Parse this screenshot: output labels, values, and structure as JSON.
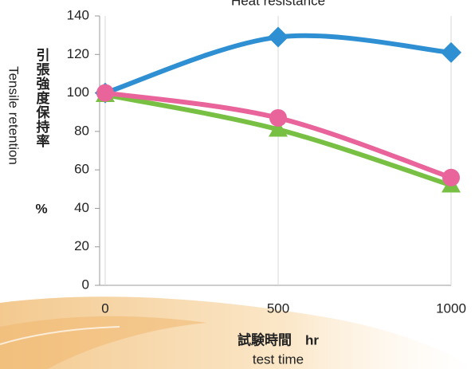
{
  "chart_data": {
    "type": "line",
    "title": "Heat resistance",
    "y_label_ja": "引張強度保持率",
    "y_label_unit": "%",
    "y_label": "Tensile retention",
    "x_label_ja": "試験時間　hr",
    "x_label": "test time",
    "x": [
      0,
      500,
      1000
    ],
    "series": [
      {
        "name": "blue",
        "color": "#2e8fd3",
        "marker": "diamond",
        "values": [
          100,
          129,
          121
        ]
      },
      {
        "name": "green",
        "color": "#78c043",
        "marker": "triangle",
        "values": [
          99,
          81,
          52
        ]
      },
      {
        "name": "pink",
        "color": "#e8649a",
        "marker": "circle",
        "values": [
          100,
          87,
          56
        ]
      }
    ],
    "xlim": [
      0,
      1000
    ],
    "xticks": [
      0,
      500,
      1000
    ],
    "ylim": [
      0,
      140
    ],
    "yticks": [
      0,
      20,
      40,
      60,
      80,
      100,
      120,
      140
    ],
    "grid": "x"
  }
}
